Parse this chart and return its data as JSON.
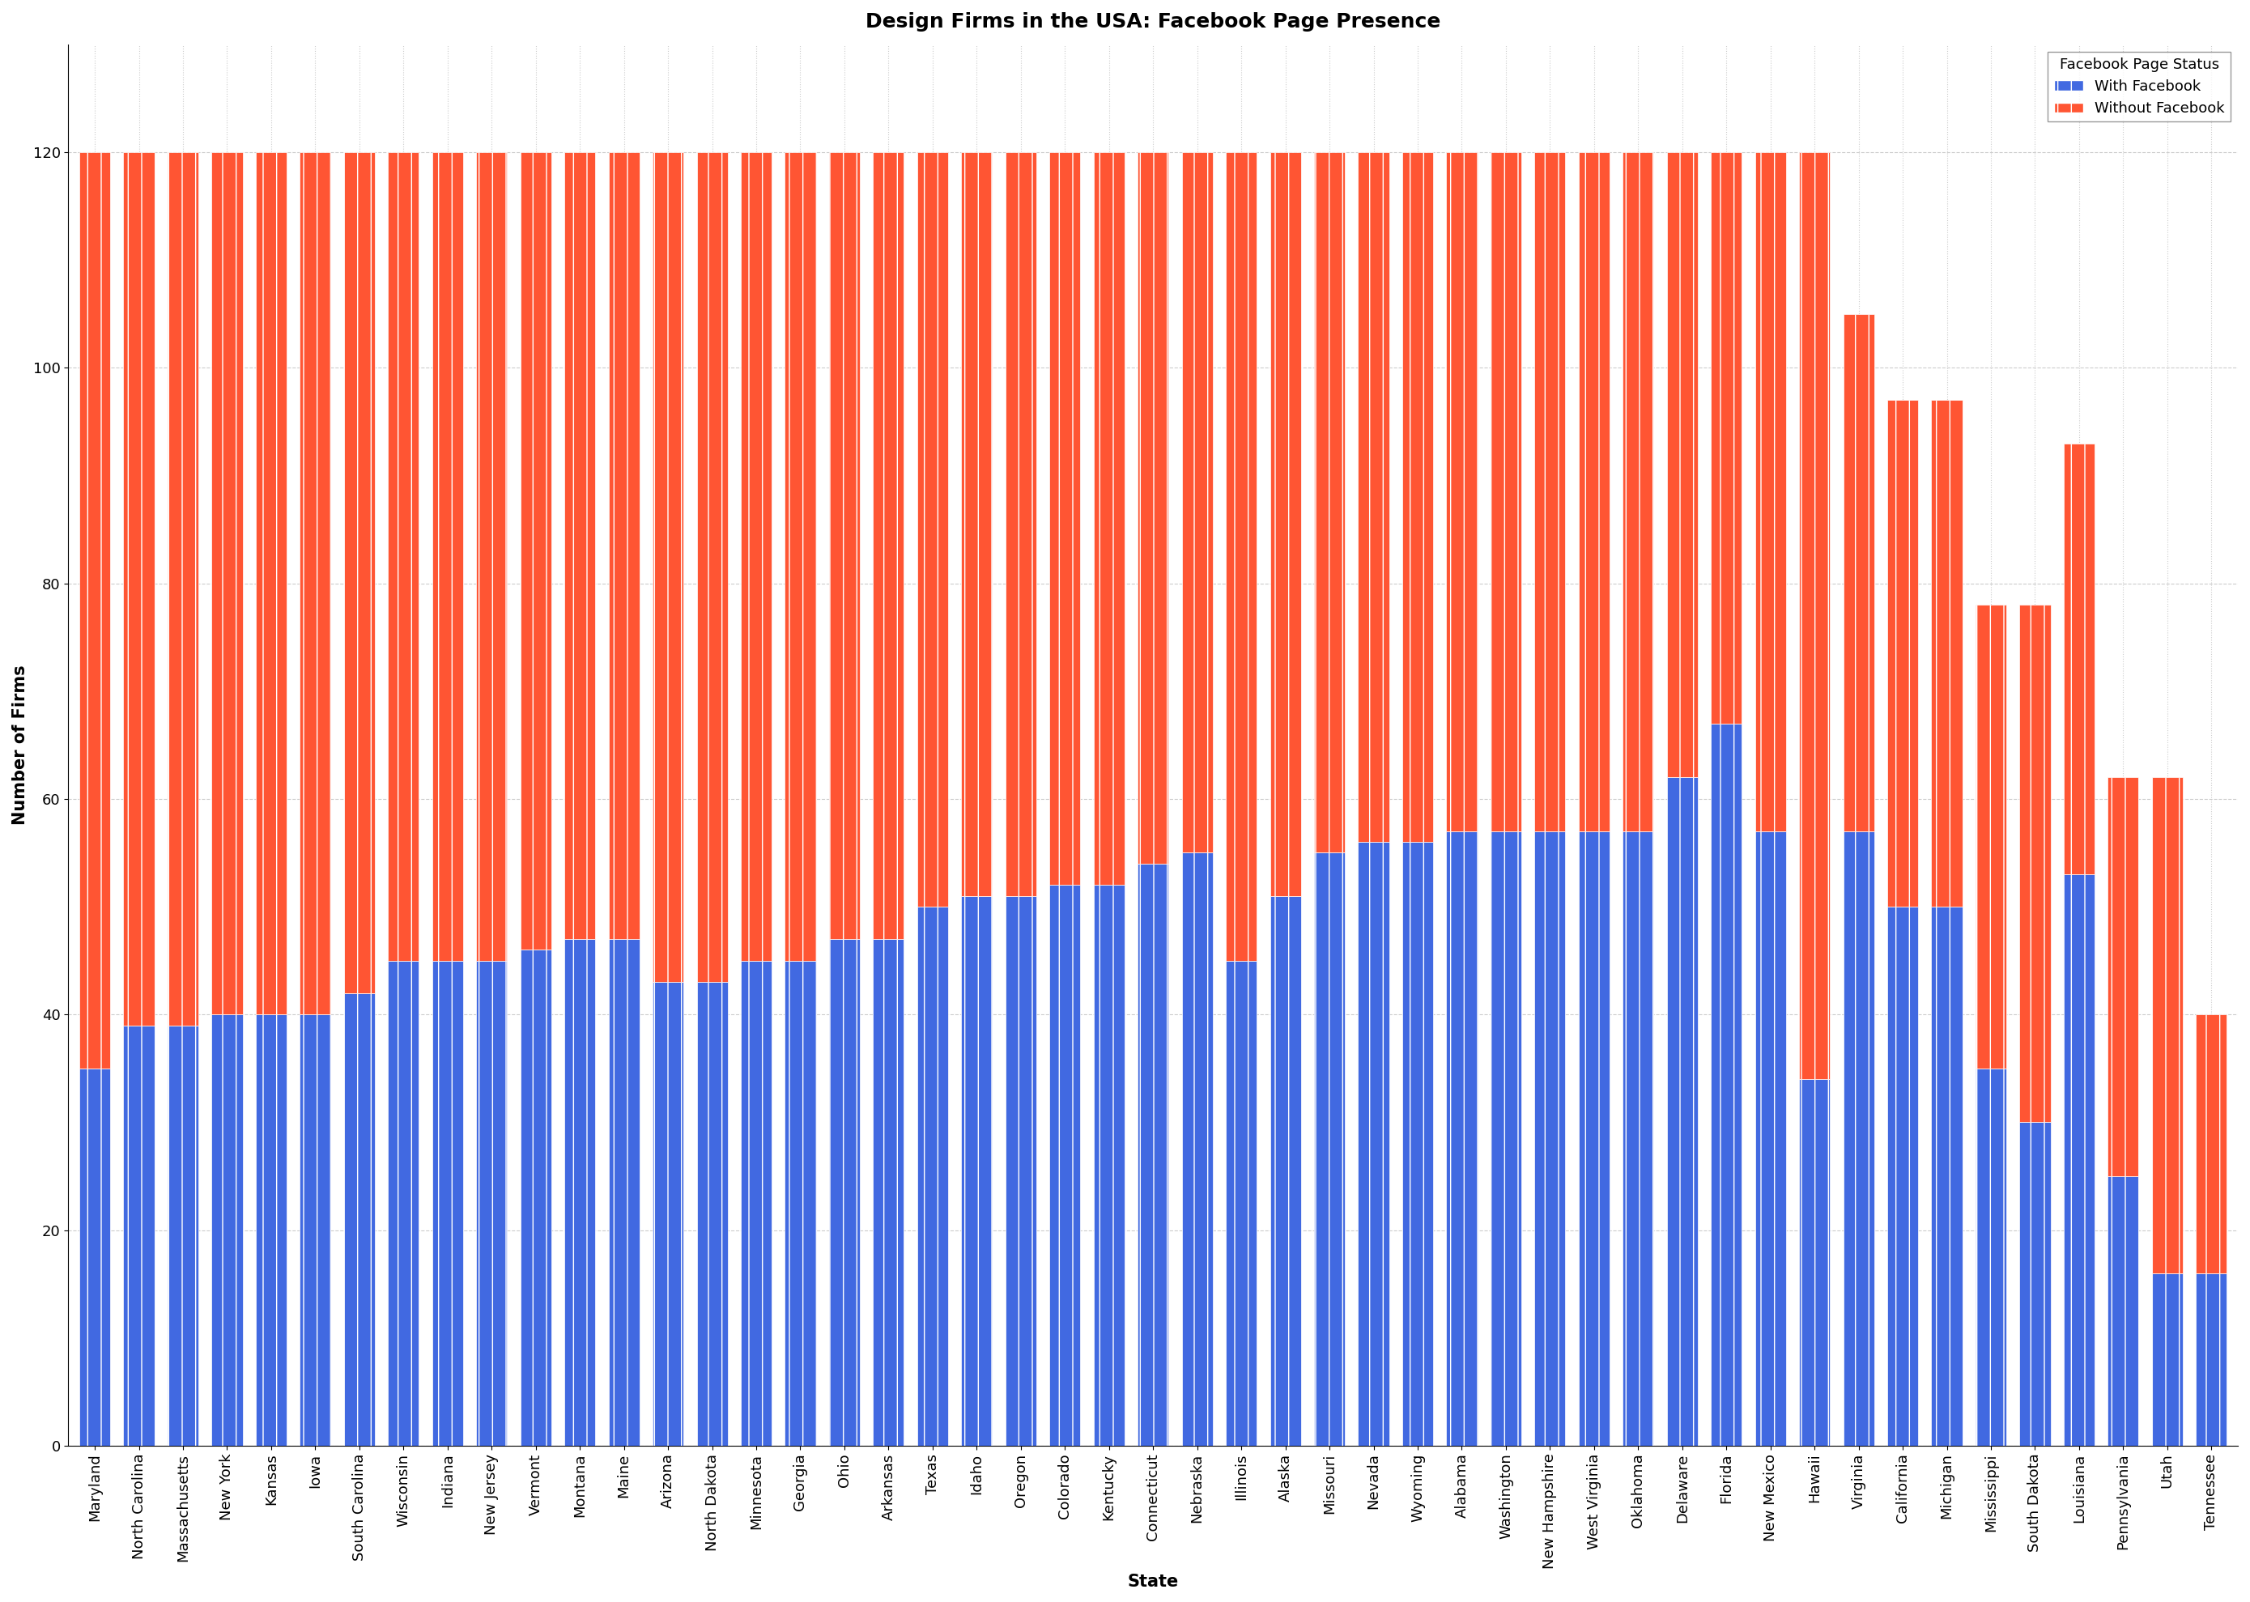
{
  "title": "Design Firms in the USA: Facebook Page Presence",
  "xlabel": "State",
  "ylabel": "Number of Firms",
  "legend_title": "Facebook Page Status",
  "legend_labels": [
    "With Facebook",
    "Without Facebook"
  ],
  "bar_colors": [
    "#4169E1",
    "#FF5533"
  ],
  "states": [
    "Maryland",
    "North Carolina",
    "Massachusetts",
    "New York",
    "Kansas",
    "Iowa",
    "South Carolina",
    "Wisconsin",
    "Indiana",
    "New Jersey",
    "Vermont",
    "Montana",
    "Maine",
    "Arizona",
    "North Dakota",
    "Minnesota",
    "Georgia",
    "Ohio",
    "Arkansas",
    "Texas",
    "Idaho",
    "Oregon",
    "Colorado",
    "Kentucky",
    "Connecticut",
    "Nebraska",
    "Illinois",
    "Alaska",
    "Missouri",
    "Nevada",
    "Wyoming",
    "Alabama",
    "Washington",
    "New Hampshire",
    "West Virginia",
    "Oklahoma",
    "Delaware",
    "Florida",
    "New Mexico",
    "Hawaii",
    "Virginia",
    "California",
    "Michigan",
    "Mississippi",
    "South Dakota",
    "Louisiana",
    "Pennsylvania",
    "Utah",
    "Tennessee"
  ],
  "with_facebook": [
    35,
    39,
    39,
    40,
    40,
    40,
    42,
    45,
    45,
    45,
    46,
    47,
    47,
    43,
    43,
    45,
    45,
    47,
    47,
    50,
    51,
    51,
    52,
    52,
    54,
    55,
    45,
    51,
    55,
    56,
    56,
    57,
    57,
    57,
    57,
    57,
    62,
    67,
    57,
    34,
    57,
    50,
    50,
    35,
    30,
    53,
    25,
    16,
    16
  ],
  "without_facebook": [
    85,
    81,
    81,
    80,
    80,
    80,
    78,
    75,
    75,
    75,
    74,
    73,
    73,
    77,
    77,
    75,
    75,
    73,
    73,
    70,
    69,
    69,
    68,
    68,
    66,
    65,
    75,
    69,
    65,
    64,
    64,
    63,
    63,
    63,
    63,
    63,
    58,
    53,
    63,
    86,
    48,
    47,
    47,
    43,
    48,
    40,
    37,
    46,
    24
  ],
  "background_color": "#ffffff",
  "grid_color": "#cccccc",
  "ylim": [
    0,
    130
  ],
  "yticks": [
    0,
    20,
    40,
    60,
    80,
    100,
    120
  ],
  "title_fontsize": 18,
  "label_fontsize": 15,
  "tick_fontsize": 13,
  "legend_fontsize": 13,
  "hatch_blue": "|||",
  "hatch_red": "|||"
}
